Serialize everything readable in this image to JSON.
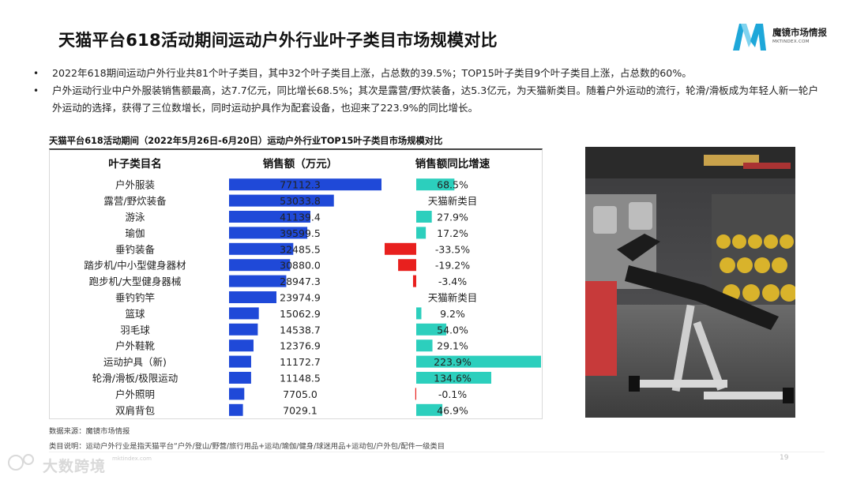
{
  "page": {
    "title": "天猫平台618活动期间运动户外行业叶子类目市场规模对比",
    "bullets": [
      "2022年618期间运动户外行业共81个叶子类目，其中32个叶子类目上涨，占总数的39.5%；TOP15叶子类目9个叶子类目上涨，占总数的60%。",
      "户外运动行业中户外服装销售额最高，达7.7亿元，同比增长68.5%；其次是露营/野炊装备，达5.3亿元，为天猫新类目。随着户外运动的流行，轮滑/滑板成为年轻人新一轮户外运动的选择，获得了三位数增长，同时运动护具作为配套设备，也迎来了223.9%的同比增长。"
    ],
    "source": "数据来源：魔镜市场情报",
    "category_note": "类目说明：运动户外行业是指天猫平台“户外/登山/野营/旅行用品+运动/瑜伽/健身/球迷用品+运动包/户外包/配件一级类目",
    "page_number": "19",
    "watermark": "大数跨境",
    "watermark_url": "mktindex.com"
  },
  "logo": {
    "name": "魔镜市场情报",
    "sub": "MKTINDEX.COM"
  },
  "colors": {
    "sales_bar": "#1f49d8",
    "growth_positive": "#2ccfbd",
    "growth_negative": "#e8201e",
    "logo_primary": "#1ea7d9",
    "logo_secondary": "#7fd3ef"
  },
  "chart_data": {
    "type": "table",
    "title": "天猫平台618活动期间（2022年5月26日-6月20日）运动户外行业TOP15叶子类目市场规模对比",
    "columns": [
      "叶子类目名",
      "销售额（万元）",
      "销售额同比增速"
    ],
    "rows": [
      {
        "category": "户外服装",
        "sales": 77112.3,
        "sales_label": "77112.3",
        "growth": 68.5,
        "growth_label": "68.5%"
      },
      {
        "category": "露营/野炊装备",
        "sales": 53033.8,
        "sales_label": "53033.8",
        "growth": null,
        "growth_label": "天猫新类目"
      },
      {
        "category": "游泳",
        "sales": 41139.4,
        "sales_label": "41139.4",
        "growth": 27.9,
        "growth_label": "27.9%"
      },
      {
        "category": "瑜伽",
        "sales": 39599.5,
        "sales_label": "39599.5",
        "growth": 17.2,
        "growth_label": "17.2%"
      },
      {
        "category": "垂钓装备",
        "sales": 32485.5,
        "sales_label": "32485.5",
        "growth": -33.5,
        "growth_label": "-33.5%"
      },
      {
        "category": "踏步机/中小型健身器材",
        "sales": 30880.0,
        "sales_label": "30880.0",
        "growth": -19.2,
        "growth_label": "-19.2%"
      },
      {
        "category": "跑步机/大型健身器械",
        "sales": 28947.3,
        "sales_label": "28947.3",
        "growth": -3.4,
        "growth_label": "-3.4%"
      },
      {
        "category": "垂钓钓竿",
        "sales": 23974.9,
        "sales_label": "23974.9",
        "growth": null,
        "growth_label": "天猫新类目"
      },
      {
        "category": "篮球",
        "sales": 15062.9,
        "sales_label": "15062.9",
        "growth": 9.2,
        "growth_label": "9.2%"
      },
      {
        "category": "羽毛球",
        "sales": 14538.7,
        "sales_label": "14538.7",
        "growth": 54.0,
        "growth_label": "54.0%"
      },
      {
        "category": "户外鞋靴",
        "sales": 12376.9,
        "sales_label": "12376.9",
        "growth": 29.1,
        "growth_label": "29.1%"
      },
      {
        "category": "运动护具（新)",
        "sales": 11172.7,
        "sales_label": "11172.7",
        "growth": 223.9,
        "growth_label": "223.9%"
      },
      {
        "category": "轮滑/滑板/极限运动",
        "sales": 11148.5,
        "sales_label": "11148.5",
        "growth": 134.6,
        "growth_label": "134.6%"
      },
      {
        "category": "户外照明",
        "sales": 7705.0,
        "sales_label": "7705.0",
        "growth": -0.1,
        "growth_label": "-0.1%"
      },
      {
        "category": "双肩背包",
        "sales": 7029.1,
        "sales_label": "7029.1",
        "growth": 46.9,
        "growth_label": "46.9%"
      }
    ],
    "sales_max": 77112.3,
    "growth_max": 223.9
  },
  "photo": {
    "description_icon": "gym-bench-photo"
  }
}
